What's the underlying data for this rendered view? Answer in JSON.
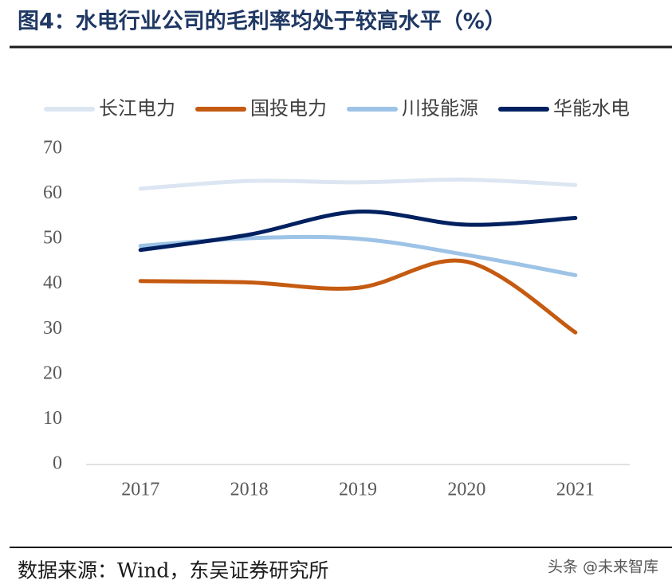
{
  "chart_data": {
    "type": "line",
    "title": "图4：水电行业公司的毛利率均处于较高水平（%）",
    "categories": [
      "2017",
      "2018",
      "2019",
      "2020",
      "2021"
    ],
    "series": [
      {
        "name": "长江电力",
        "color": "#dce6f2",
        "values": [
          61.2,
          62.9,
          62.6,
          63.2,
          62.0
        ]
      },
      {
        "name": "国投电力",
        "color": "#c55a11",
        "values": [
          40.7,
          40.4,
          39.2,
          45.0,
          29.3
        ]
      },
      {
        "name": "川投能源",
        "color": "#9dc3e6",
        "values": [
          48.5,
          50.2,
          50.1,
          46.5,
          42.0
        ]
      },
      {
        "name": "华能水电",
        "color": "#002060",
        "values": [
          47.6,
          51.0,
          56.1,
          53.2,
          54.7
        ]
      }
    ],
    "ylim": [
      0,
      70
    ],
    "yticks": [
      0,
      10,
      20,
      30,
      40,
      50,
      60,
      70
    ],
    "source": "数据来源：Wind，东吴证券研究所",
    "watermark": "头条 @未来智库"
  }
}
